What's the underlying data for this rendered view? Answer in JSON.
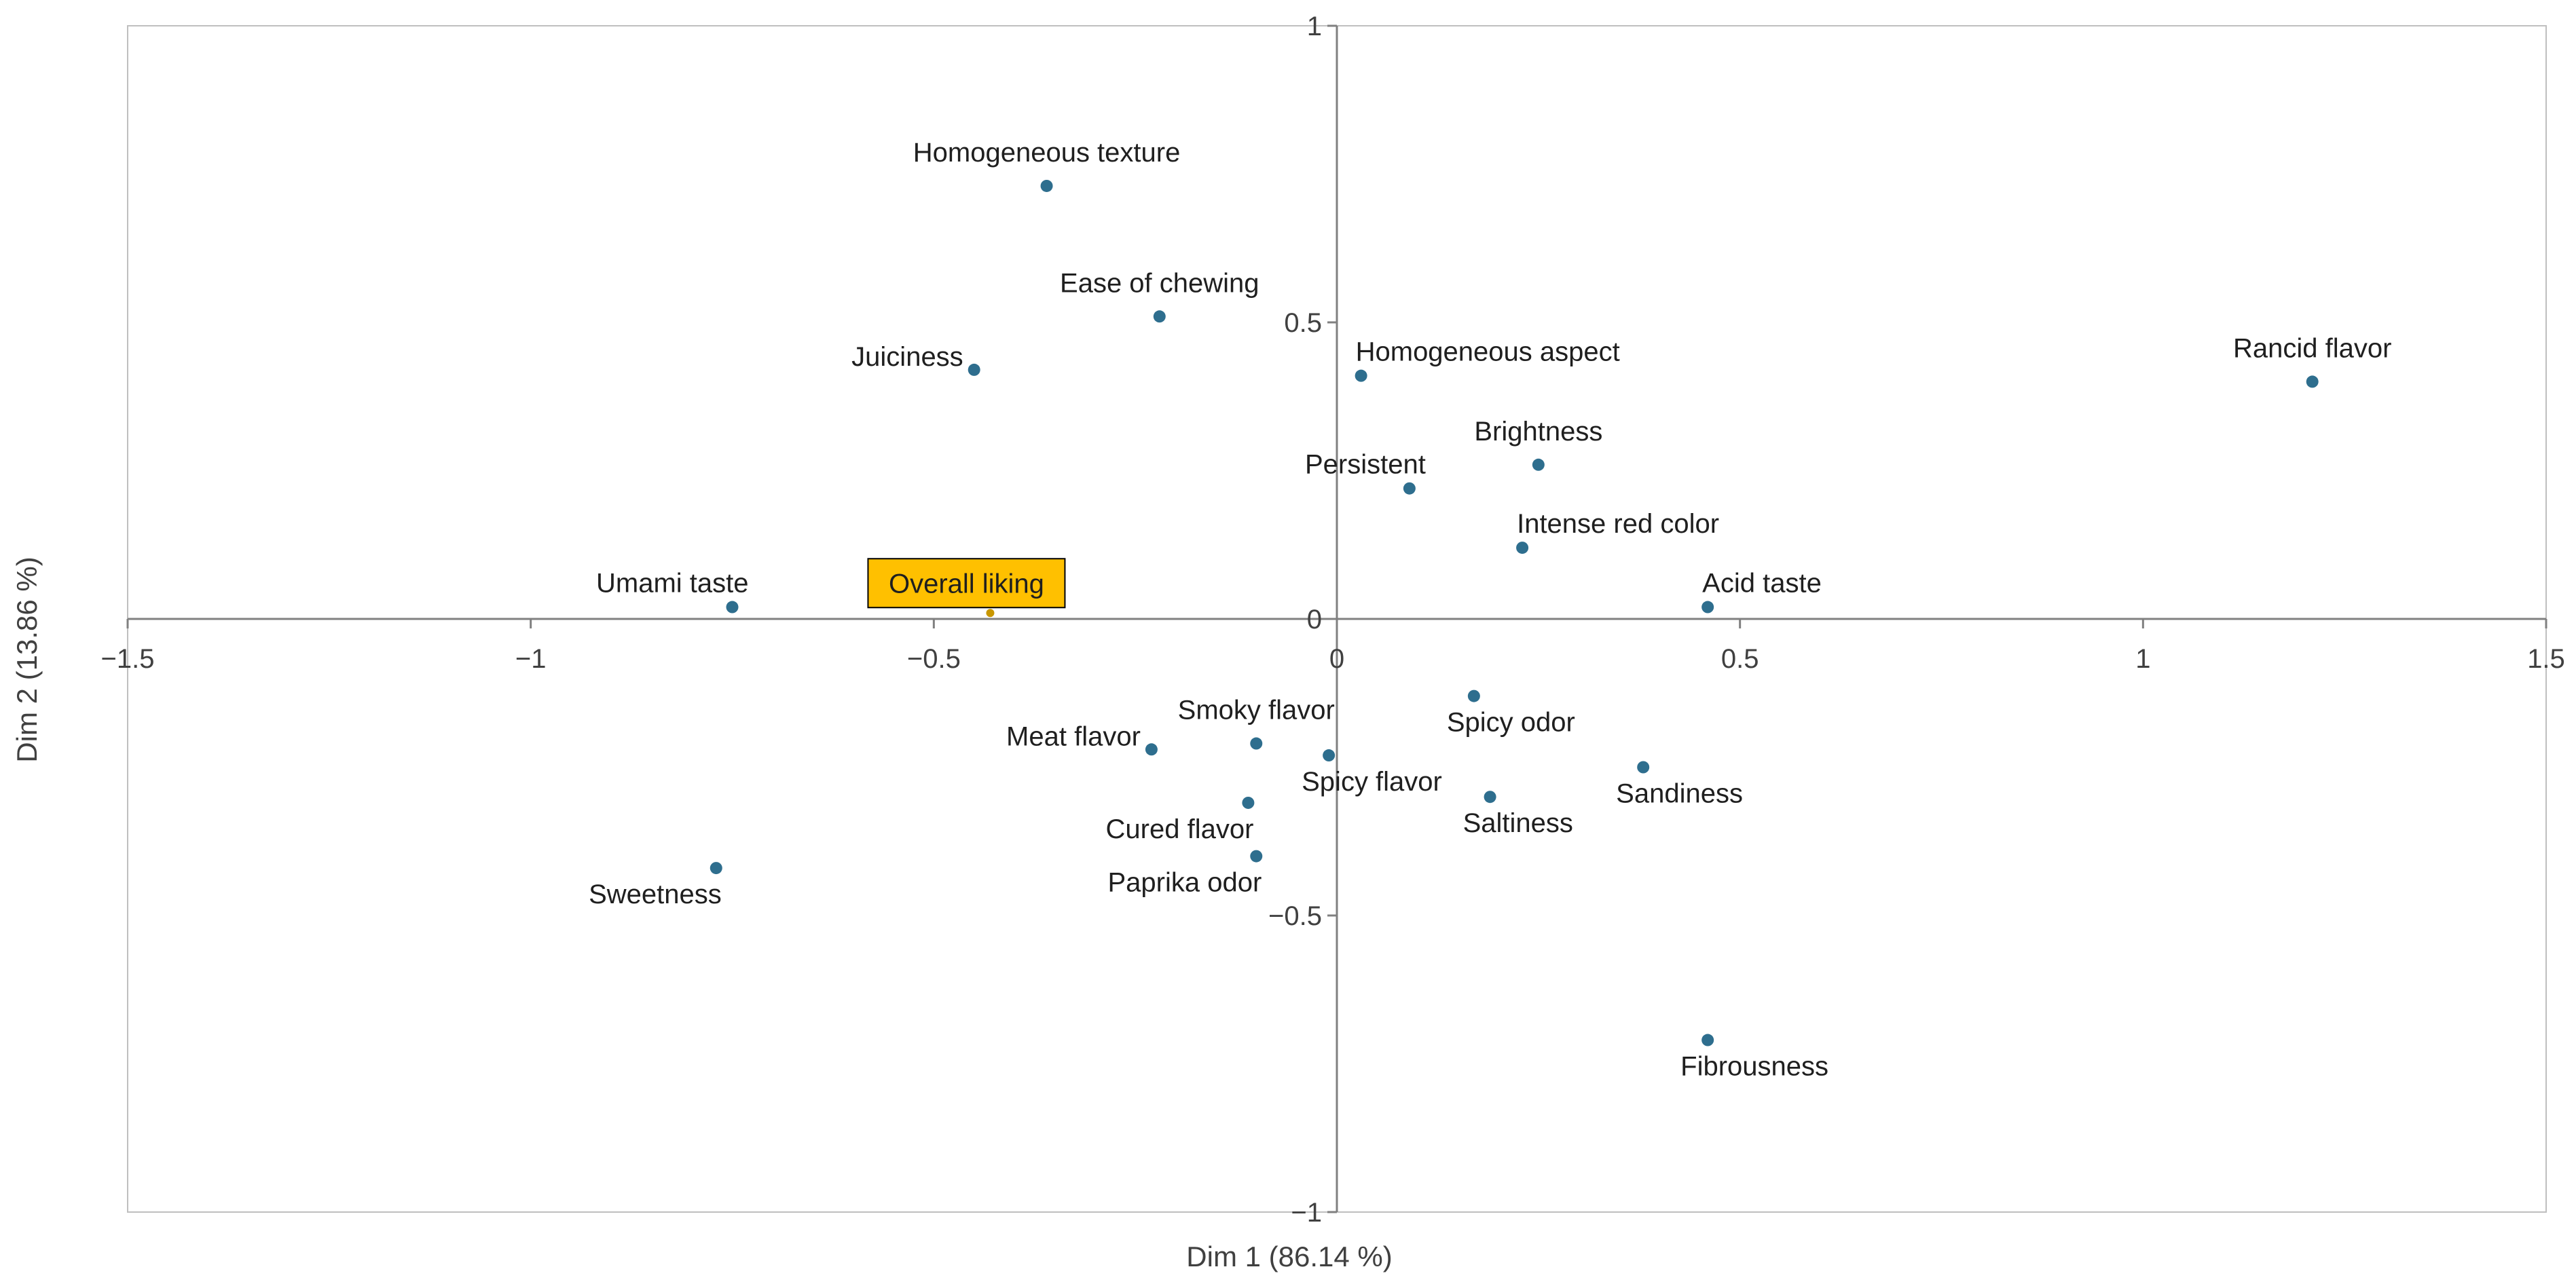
{
  "chart_data": {
    "type": "scatter",
    "title": "",
    "xlabel": "Dim 1 (86.14 %)",
    "ylabel": "Dim 2 (13.86 %)",
    "xlim": [
      -1.5,
      1.5
    ],
    "ylim": [
      -1,
      1
    ],
    "xticks": [
      -1.5,
      -1,
      -0.5,
      0,
      0.5,
      1,
      1.5
    ],
    "yticks": [
      -1,
      -0.5,
      0,
      0.5,
      1
    ],
    "xtick_labels": [
      "−1.5",
      "−1",
      "−0.5",
      "0",
      "0.5",
      "1",
      "1.5"
    ],
    "ytick_labels": [
      "−1",
      "−0.5",
      "0",
      "0.5",
      "1"
    ],
    "grid": false,
    "colors": {
      "point": "#2E6E8E",
      "highlight_point": "#C99700",
      "highlight_box": "#FFC000",
      "axis": "#808080",
      "frame": "#BFBFBF"
    },
    "points": [
      {
        "label": "Homogeneous texture",
        "x": -0.36,
        "y": 0.73,
        "label_pos": "above"
      },
      {
        "label": "Ease of chewing",
        "x": -0.22,
        "y": 0.51,
        "label_pos": "above"
      },
      {
        "label": "Juiciness",
        "x": -0.45,
        "y": 0.42,
        "label_pos": "left"
      },
      {
        "label": "Homogeneous aspect",
        "x": 0.03,
        "y": 0.41,
        "label_pos": "above-right"
      },
      {
        "label": "Rancid flavor",
        "x": 1.21,
        "y": 0.4,
        "label_pos": "above"
      },
      {
        "label": "Brightness",
        "x": 0.25,
        "y": 0.26,
        "label_pos": "above"
      },
      {
        "label": "Persistent",
        "x": 0.09,
        "y": 0.22,
        "label_pos": "above-left"
      },
      {
        "label": "Intense red color",
        "x": 0.23,
        "y": 0.12,
        "label_pos": "above-right"
      },
      {
        "label": "Acid taste",
        "x": 0.46,
        "y": 0.02,
        "label_pos": "above-right"
      },
      {
        "label": "Umami taste",
        "x": -0.75,
        "y": 0.02,
        "label_pos": "above-left"
      },
      {
        "label": "Overall liking",
        "x": -0.43,
        "y": 0.01,
        "label_pos": "boxed",
        "highlight": true
      },
      {
        "label": "Spicy odor",
        "x": 0.17,
        "y": -0.13,
        "label_pos": "below-right"
      },
      {
        "label": "Smoky flavor",
        "x": -0.1,
        "y": -0.21,
        "label_pos": "above"
      },
      {
        "label": "Meat flavor",
        "x": -0.23,
        "y": -0.22,
        "label_pos": "left"
      },
      {
        "label": "Spicy flavor",
        "x": -0.01,
        "y": -0.23,
        "label_pos": "below-right"
      },
      {
        "label": "Sandiness",
        "x": 0.38,
        "y": -0.25,
        "label_pos": "below-right"
      },
      {
        "label": "Saltiness",
        "x": 0.19,
        "y": -0.3,
        "label_pos": "below-right"
      },
      {
        "label": "Cured flavor",
        "x": -0.11,
        "y": -0.31,
        "label_pos": "below-left"
      },
      {
        "label": "Paprika odor",
        "x": -0.1,
        "y": -0.4,
        "label_pos": "below-left"
      },
      {
        "label": "Sweetness",
        "x": -0.77,
        "y": -0.42,
        "label_pos": "below-left"
      },
      {
        "label": "Fibrousness",
        "x": 0.46,
        "y": -0.71,
        "label_pos": "below-right"
      }
    ]
  }
}
